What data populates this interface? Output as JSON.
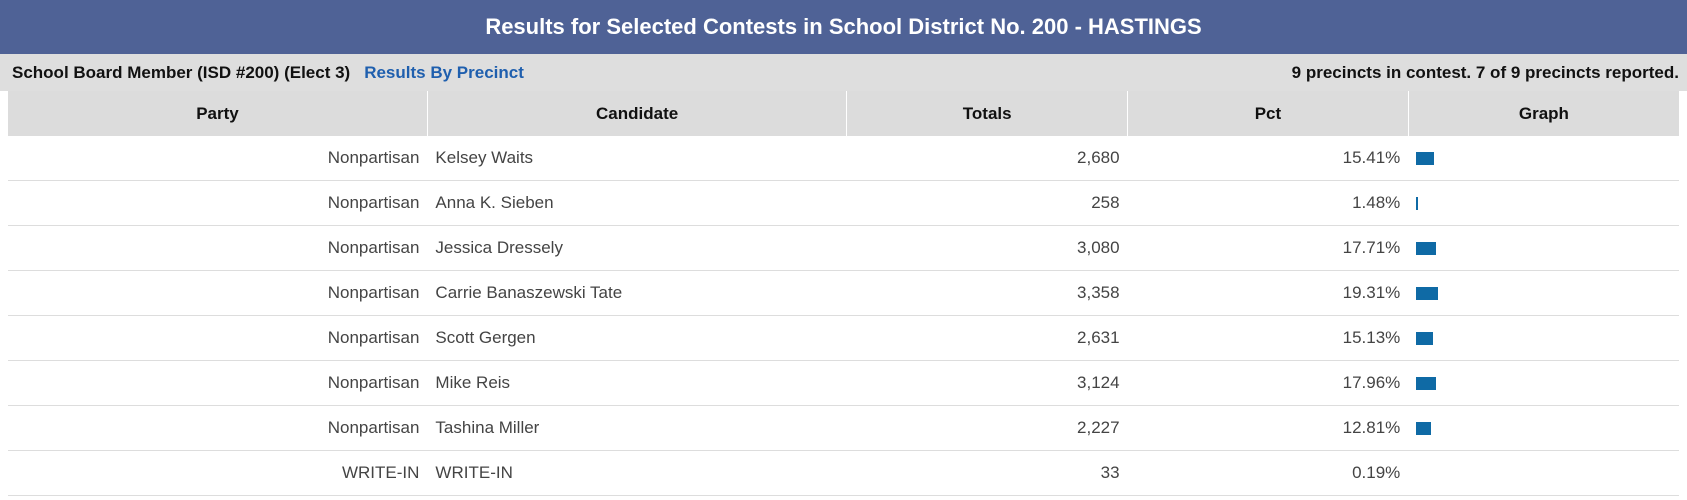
{
  "banner_title": "Results for Selected Contests in School District No. 200 - HASTINGS",
  "contest": {
    "name": "School Board Member (ISD #200) (Elect 3)",
    "link_label": "Results By Precinct",
    "reported": "9 precincts in contest. 7 of 9 precincts reported."
  },
  "columns": [
    "Party",
    "Candidate",
    "Totals",
    "Pct",
    "Graph"
  ],
  "colors": {
    "banner": "#4f6296",
    "bar": "#0f6aa5",
    "link": "#1f5fae"
  },
  "rows": [
    {
      "party": "Nonpartisan",
      "candidate": "Kelsey Waits",
      "totals": "2,680",
      "pct": "15.41%",
      "pct_value": 15.41
    },
    {
      "party": "Nonpartisan",
      "candidate": "Anna K. Sieben",
      "totals": "258",
      "pct": "1.48%",
      "pct_value": 1.48
    },
    {
      "party": "Nonpartisan",
      "candidate": "Jessica Dressely",
      "totals": "3,080",
      "pct": "17.71%",
      "pct_value": 17.71
    },
    {
      "party": "Nonpartisan",
      "candidate": "Carrie Banaszewski Tate",
      "totals": "3,358",
      "pct": "19.31%",
      "pct_value": 19.31
    },
    {
      "party": "Nonpartisan",
      "candidate": "Scott Gergen",
      "totals": "2,631",
      "pct": "15.13%",
      "pct_value": 15.13
    },
    {
      "party": "Nonpartisan",
      "candidate": "Mike Reis",
      "totals": "3,124",
      "pct": "17.96%",
      "pct_value": 17.96
    },
    {
      "party": "Nonpartisan",
      "candidate": "Tashina Miller",
      "totals": "2,227",
      "pct": "12.81%",
      "pct_value": 12.81
    },
    {
      "party": "WRITE-IN",
      "candidate": "WRITE-IN",
      "totals": "33",
      "pct": "0.19%",
      "pct_value": 0.19
    }
  ]
}
